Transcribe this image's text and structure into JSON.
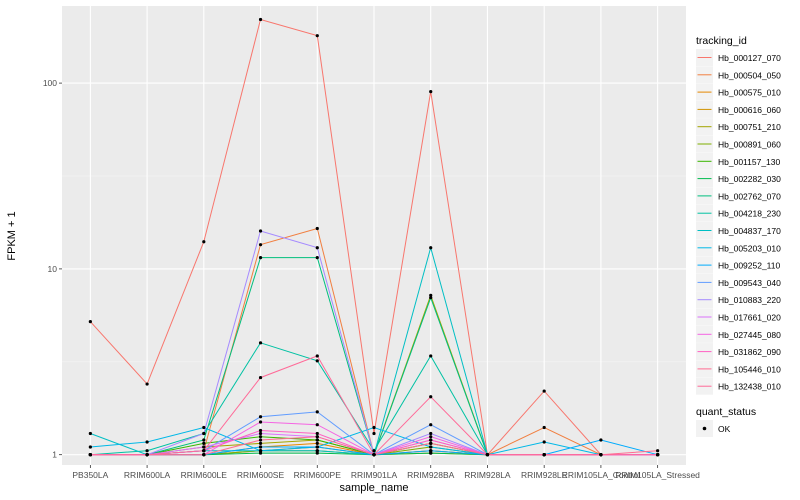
{
  "chart_data": {
    "type": "line",
    "xlabel": "sample_name",
    "ylabel": "FPKM + 1",
    "y_scale": "log10",
    "ylim": [
      0.88,
      260
    ],
    "y_ticks": [
      {
        "value": 1,
        "label": "1"
      },
      {
        "value": 10,
        "label": "10"
      },
      {
        "value": 100,
        "label": "100"
      }
    ],
    "categories": [
      "PB350LA",
      "RRIM600LA",
      "RRIM600LE",
      "RRIM600SE",
      "RRIM600PE",
      "RRIM901LA",
      "RRIM928BA",
      "RRIM928LA",
      "RRIM928LE",
      "RRIM105LA_Control",
      "RRIM105LA_Stressed"
    ],
    "grid": true,
    "legend": {
      "title": "tracking_id",
      "placement": "right",
      "shape_title": "quant_status",
      "shape_entries": [
        "OK"
      ]
    },
    "series": [
      {
        "name": "Hb_000127_070",
        "color": "#F8766D",
        "values": [
          5.2,
          2.4,
          14,
          220,
          180,
          1.3,
          90,
          1,
          2.2,
          1,
          1
        ]
      },
      {
        "name": "Hb_000504_050",
        "color": "#F17F40",
        "values": [
          1,
          1,
          1.05,
          13.5,
          16.5,
          1,
          1.05,
          1,
          1.4,
          1,
          1
        ]
      },
      {
        "name": "Hb_000575_010",
        "color": "#E58700",
        "values": [
          1,
          1,
          1,
          1.1,
          1.15,
          1,
          1.05,
          1,
          1,
          1,
          1
        ]
      },
      {
        "name": "Hb_000616_060",
        "color": "#D19300",
        "values": [
          1,
          1,
          1,
          1.05,
          1.1,
          1,
          1.02,
          1,
          1,
          1,
          1
        ]
      },
      {
        "name": "Hb_000751_210",
        "color": "#A3A500",
        "values": [
          1,
          1,
          1.1,
          1.15,
          1.2,
          1,
          7.2,
          1,
          1,
          1,
          1
        ]
      },
      {
        "name": "Hb_000891_060",
        "color": "#7DAE00",
        "values": [
          1,
          1,
          1,
          1.05,
          1.05,
          1,
          1.1,
          1,
          1,
          1,
          1
        ]
      },
      {
        "name": "Hb_001157_130",
        "color": "#39B600",
        "values": [
          1,
          1,
          1.15,
          1.25,
          1.2,
          1,
          1.15,
          1,
          1,
          1,
          1
        ]
      },
      {
        "name": "Hb_002282_030",
        "color": "#00BB4E",
        "values": [
          1,
          1,
          1,
          1.02,
          1.02,
          1,
          1.02,
          1,
          1,
          1,
          1
        ]
      },
      {
        "name": "Hb_002762_070",
        "color": "#00BF7D",
        "values": [
          1,
          1,
          1.2,
          11.5,
          11.5,
          1,
          7.0,
          1,
          1,
          1,
          1
        ]
      },
      {
        "name": "Hb_004218_230",
        "color": "#00C1A3",
        "values": [
          1,
          1.05,
          1.3,
          4.0,
          3.2,
          1.05,
          3.4,
          1,
          1,
          1,
          1
        ]
      },
      {
        "name": "Hb_004837_170",
        "color": "#00BFC4",
        "values": [
          1.3,
          1,
          1.05,
          1.05,
          1.05,
          1,
          13,
          1,
          1,
          1,
          1
        ]
      },
      {
        "name": "Hb_005203_010",
        "color": "#00B8E7",
        "values": [
          1.1,
          1.17,
          1.4,
          1.05,
          1.1,
          1.4,
          1.1,
          1,
          1.17,
          1,
          1
        ]
      },
      {
        "name": "Hb_009252_110",
        "color": "#00ABFD",
        "values": [
          1,
          1,
          1,
          1.1,
          1.1,
          1,
          1.05,
          1,
          1,
          1.2,
          1
        ]
      },
      {
        "name": "Hb_009543_040",
        "color": "#619CFF",
        "values": [
          1,
          1,
          1.05,
          1.6,
          1.7,
          1,
          1.45,
          1,
          1,
          1,
          1
        ]
      },
      {
        "name": "Hb_010883_220",
        "color": "#A58AFF",
        "values": [
          1,
          1,
          1.3,
          16,
          13,
          1,
          1.3,
          1,
          1,
          1,
          1
        ]
      },
      {
        "name": "Hb_017661_020",
        "color": "#DB72FB",
        "values": [
          1,
          1,
          1.1,
          1.3,
          1.25,
          1,
          1.2,
          1,
          1,
          1,
          1
        ]
      },
      {
        "name": "Hb_027445_080",
        "color": "#F564E3",
        "values": [
          1,
          1,
          1,
          1.5,
          1.45,
          1,
          1.25,
          1,
          1,
          1,
          1
        ]
      },
      {
        "name": "Hb_031862_090",
        "color": "#FF61C3",
        "values": [
          1,
          1,
          1.05,
          1.35,
          1.3,
          1,
          1.2,
          1,
          1,
          1,
          1
        ]
      },
      {
        "name": "Hb_105446_010",
        "color": "#FF6C91",
        "values": [
          1,
          1,
          1,
          1.2,
          1.25,
          1,
          1.15,
          1,
          1,
          1,
          1.05
        ]
      },
      {
        "name": "Hb_132438_010",
        "color": "#FF6A98",
        "values": [
          1,
          1,
          1.05,
          2.6,
          3.4,
          1,
          2.05,
          1,
          1,
          1,
          1
        ]
      }
    ]
  }
}
